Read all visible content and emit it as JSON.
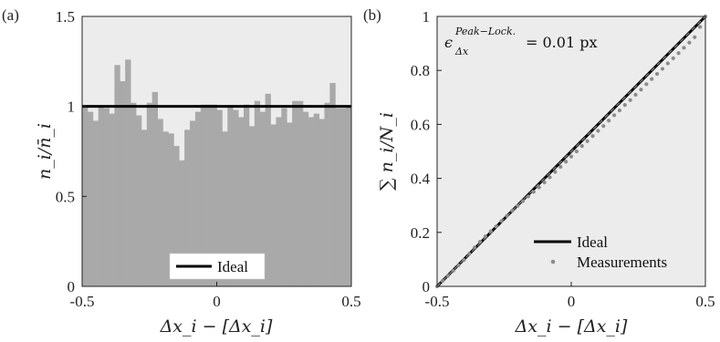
{
  "chart_data": [
    {
      "type": "bar",
      "panel_label": "(a)",
      "xlabel": "Δx_i − [Δx_i]",
      "ylabel": "n_i/n̄_i",
      "xlim": [
        -0.5,
        0.5
      ],
      "ylim": [
        0,
        1.5
      ],
      "x_ticks": [
        -0.5,
        0,
        0.5
      ],
      "x_tick_labels": [
        "-0.5",
        "0",
        "0.5"
      ],
      "y_ticks": [
        0,
        0.5,
        1,
        1.5
      ],
      "y_tick_labels": [
        "0",
        "0.5",
        "1",
        "1.5"
      ],
      "grid": false,
      "background": "#ececec",
      "bar_color": "#a9a9a9",
      "bin_width": 0.02,
      "values": [
        1.0,
        0.97,
        0.92,
        1.0,
        0.99,
        0.96,
        1.23,
        1.14,
        1.26,
        1.02,
        0.95,
        0.87,
        1.02,
        1.08,
        0.93,
        0.86,
        0.85,
        0.78,
        0.7,
        0.87,
        0.92,
        0.97,
        1.01,
        1.01,
        1.01,
        0.98,
        0.86,
        1.0,
        0.98,
        0.94,
        1.01,
        0.89,
        1.03,
        0.97,
        1.07,
        0.9,
        0.94,
        0.99,
        0.91,
        1.03,
        1.03,
        0.97,
        0.94,
        0.96,
        0.93,
        1.02,
        1.13,
        0.99,
        0.99,
        1.0
      ],
      "ideal": 1,
      "legend": {
        "items": [
          "Ideal"
        ],
        "placement": "bottom-center"
      }
    },
    {
      "type": "scatter",
      "panel_label": "(b)",
      "xlabel": "Δx_i − [Δx_i]",
      "ylabel": "∑ n_i/N_i",
      "xlim": [
        -0.5,
        0.5
      ],
      "ylim": [
        0,
        1
      ],
      "x_ticks": [
        -0.5,
        0,
        0.5
      ],
      "x_tick_labels": [
        "-0.5",
        "0",
        "0.5"
      ],
      "y_ticks": [
        0,
        0.2,
        0.4,
        0.6,
        0.8,
        1
      ],
      "y_tick_labels": [
        "0",
        "0.2",
        "0.4",
        "0.6",
        "0.8",
        "1"
      ],
      "grid": false,
      "background": "#ececec",
      "ideal_line": {
        "x": [
          -0.5,
          0.5
        ],
        "y": [
          0,
          1
        ]
      },
      "series": [
        {
          "name": "Measurements",
          "marker_color": "#8c8c8c",
          "x": [
            -0.5,
            -0.48,
            -0.46,
            -0.44,
            -0.42,
            -0.4,
            -0.38,
            -0.36,
            -0.34,
            -0.32,
            -0.3,
            -0.28,
            -0.26,
            -0.24,
            -0.22,
            -0.2,
            -0.18,
            -0.16,
            -0.14,
            -0.12,
            -0.1,
            -0.08,
            -0.06,
            -0.04,
            -0.02,
            0,
            0.02,
            0.04,
            0.06,
            0.08,
            0.1,
            0.12,
            0.14,
            0.16,
            0.18,
            0.2,
            0.22,
            0.24,
            0.26,
            0.28,
            0.3,
            0.32,
            0.34,
            0.36,
            0.38,
            0.4,
            0.42,
            0.44,
            0.46,
            0.48,
            0.5
          ],
          "y": [
            0.0,
            0.02,
            0.039,
            0.058,
            0.078,
            0.098,
            0.121,
            0.144,
            0.165,
            0.185,
            0.204,
            0.222,
            0.242,
            0.261,
            0.28,
            0.298,
            0.316,
            0.333,
            0.35,
            0.367,
            0.385,
            0.404,
            0.424,
            0.443,
            0.462,
            0.481,
            0.5,
            0.52,
            0.538,
            0.557,
            0.576,
            0.594,
            0.614,
            0.634,
            0.652,
            0.672,
            0.69,
            0.71,
            0.729,
            0.749,
            0.768,
            0.787,
            0.806,
            0.826,
            0.845,
            0.864,
            0.884,
            0.903,
            0.923,
            0.961,
            1.0
          ]
        }
      ],
      "annotation": {
        "epsilon": "ϵ",
        "superscript": "Peak−Lock.",
        "subscript": "Δx",
        "value_text": "= 0.01 px"
      },
      "legend": {
        "items": [
          "Ideal",
          "Measurements"
        ],
        "placement": "bottom-right"
      }
    }
  ]
}
